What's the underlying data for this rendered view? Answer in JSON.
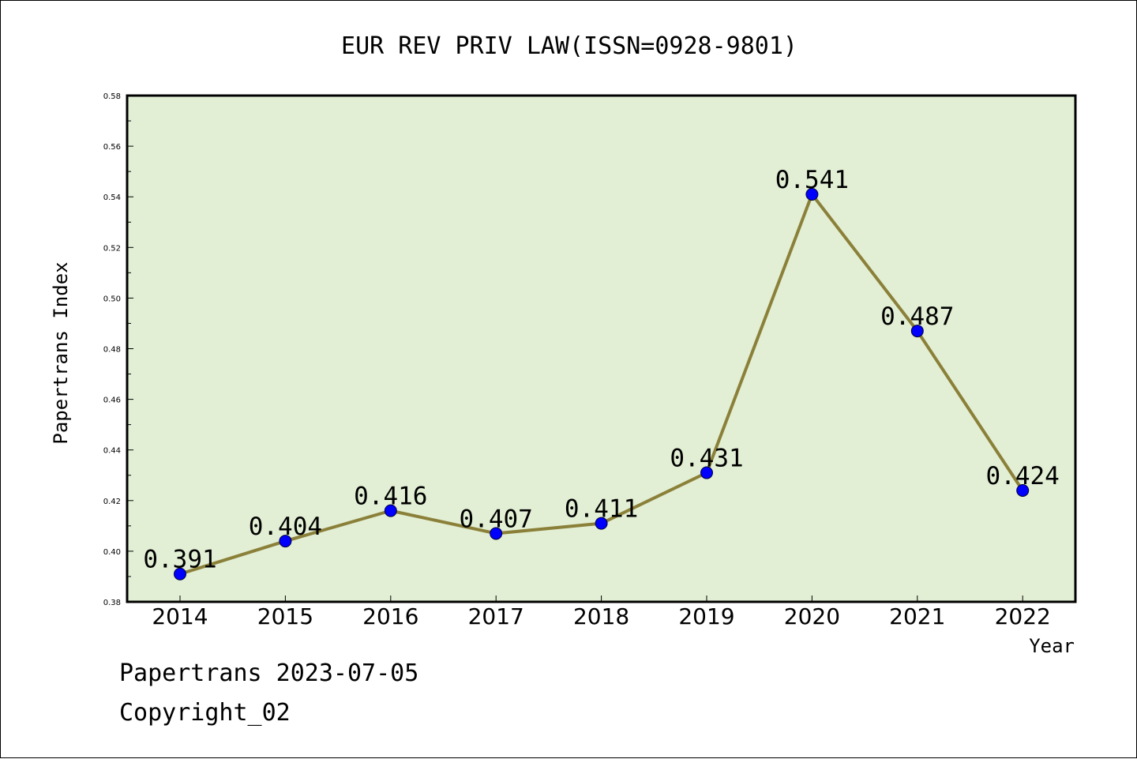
{
  "chart_data": {
    "type": "line",
    "title": "EUR REV PRIV LAW(ISSN=0928-9801)",
    "xlabel": "Year",
    "ylabel": "Papertrans Index",
    "categories": [
      "2014",
      "2015",
      "2016",
      "2017",
      "2018",
      "2019",
      "2020",
      "2021",
      "2022"
    ],
    "series": [
      {
        "values": [
          0.391,
          0.404,
          0.416,
          0.407,
          0.411,
          0.431,
          0.541,
          0.487,
          0.424
        ]
      }
    ],
    "data_labels": [
      "0.391",
      "0.404",
      "0.416",
      "0.407",
      "0.411",
      "0.431",
      "0.541",
      "0.487",
      "0.424"
    ],
    "ylim": [
      0.38,
      0.58
    ],
    "yticks": [
      "0.38",
      "0.40",
      "0.42",
      "0.44",
      "0.46",
      "0.48",
      "0.50",
      "0.52",
      "0.54",
      "0.56",
      "0.58"
    ],
    "grid": false,
    "legend": "none",
    "colors": {
      "plot_background": "#e2efd4",
      "line": "#8b8039",
      "marker": "#0000ff"
    }
  },
  "footer": {
    "line1": "Papertrans 2023-07-05",
    "line2": "Copyright_02"
  }
}
